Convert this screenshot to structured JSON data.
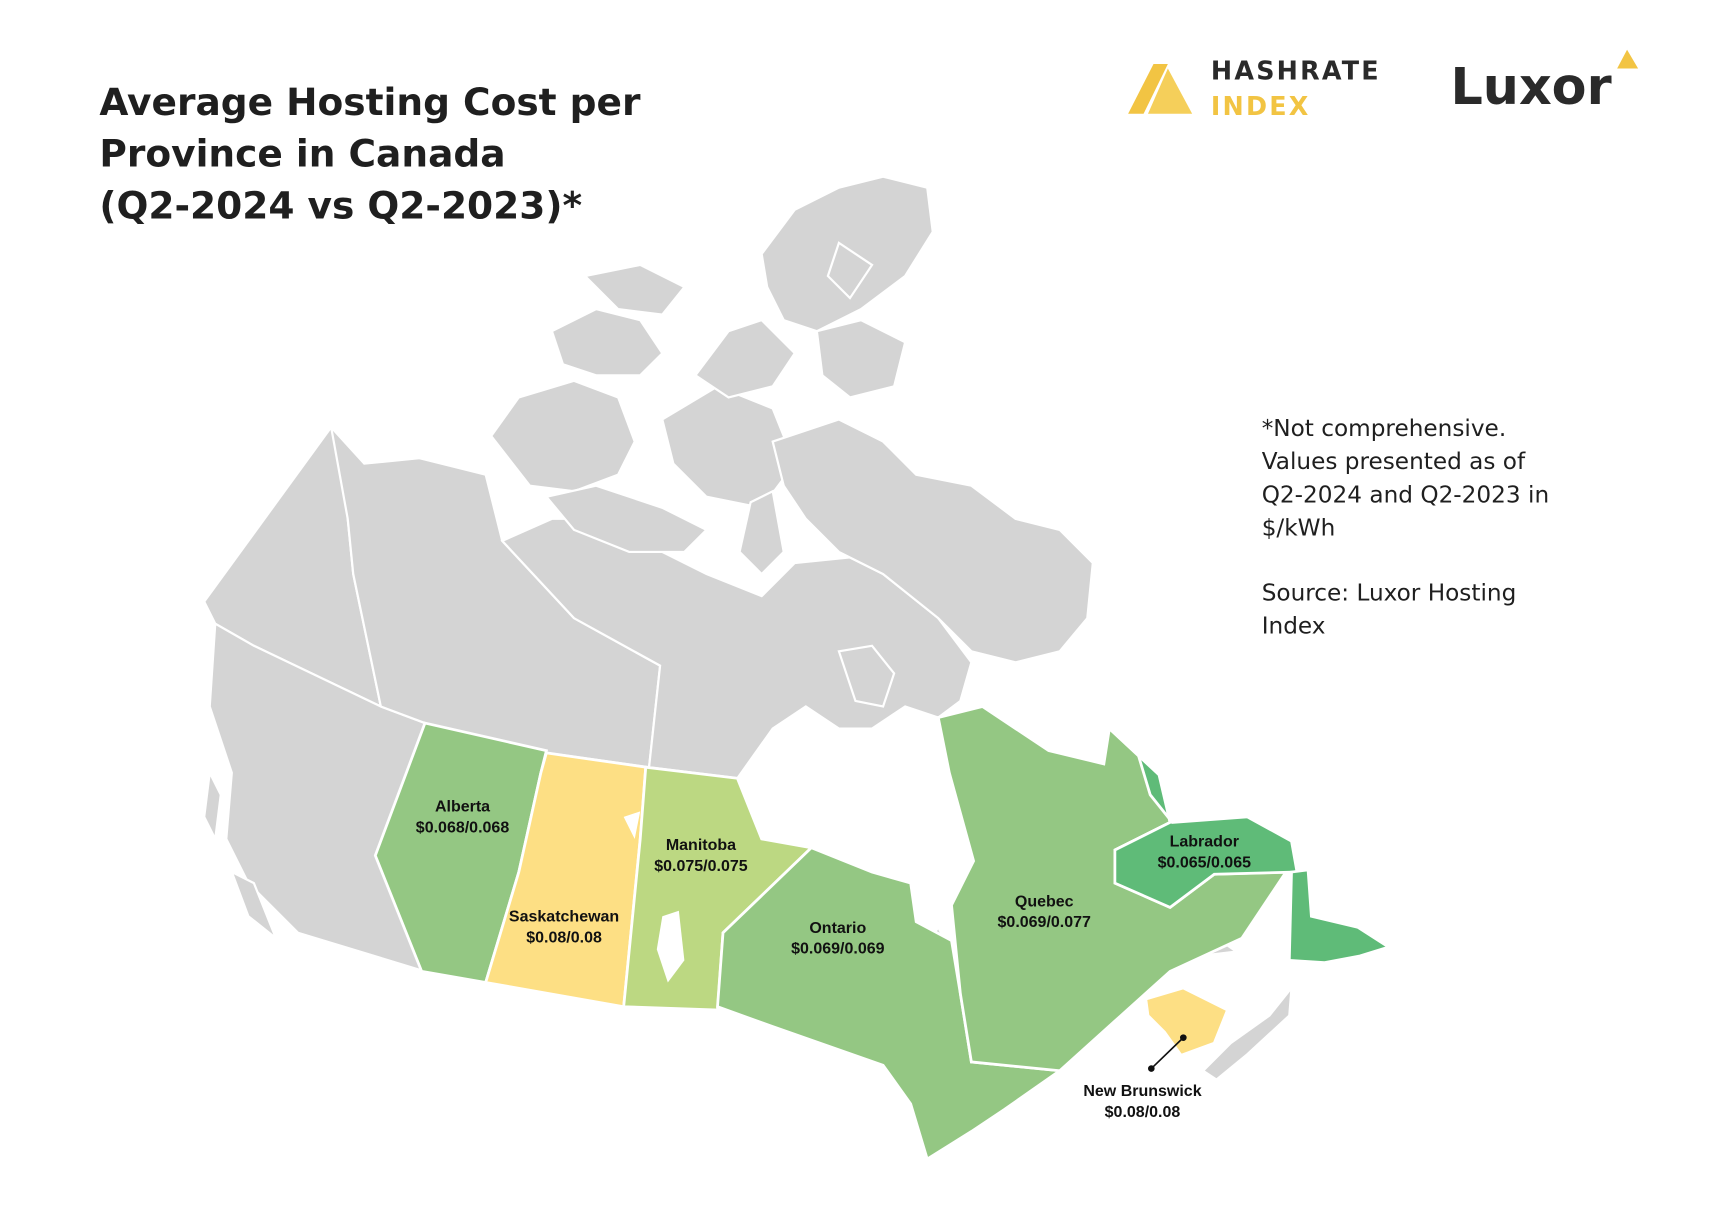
{
  "header": {
    "title_lines": [
      "Average Hosting Cost per",
      "Province in Canada",
      "(Q2-2024 vs Q2-2023)*"
    ],
    "logos": {
      "hashrate": [
        "HASHRATE",
        "INDEX"
      ],
      "luxor": "Luxor"
    }
  },
  "note": {
    "lines": [
      "*Not comprehensive.",
      "Values presented as of",
      "Q2-2024 and Q2-2023 in",
      "$/kWh"
    ]
  },
  "source": {
    "lines": [
      "Source: Luxor Hosting",
      "Index"
    ]
  },
  "regions": [
    {
      "name": "Alberta",
      "label": "$0.068/0.068"
    },
    {
      "name": "Saskatchewan",
      "label": "$0.08/0.08"
    },
    {
      "name": "Manitoba",
      "label": "$0.075/0.075"
    },
    {
      "name": "Ontario",
      "label": "$0.069/0.069"
    },
    {
      "name": "Quebec",
      "label": "$0.069/0.077"
    },
    {
      "name": "Labrador",
      "label": "$0.065/0.065"
    },
    {
      "name": "New Brunswick",
      "label": "$0.08/0.08"
    }
  ]
}
